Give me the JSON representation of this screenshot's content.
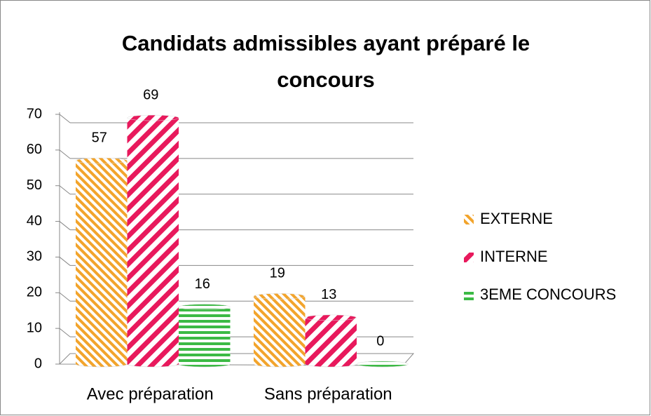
{
  "chart_data": {
    "type": "bar",
    "title": "Candidats admissibles ayant préparé le concours",
    "categories": [
      "Avec préparation",
      "Sans préparation"
    ],
    "series": [
      {
        "name": "EXTERNE",
        "color": "#f2a42c",
        "values": [
          57,
          19
        ]
      },
      {
        "name": "INTERNE",
        "color": "#e8195c",
        "values": [
          69,
          13
        ]
      },
      {
        "name": "3EME CONCOURS",
        "color": "#3cba45",
        "values": [
          16,
          0
        ]
      }
    ],
    "ylim": [
      0,
      70
    ],
    "yticks": [
      0,
      10,
      20,
      30,
      40,
      50,
      60,
      70
    ],
    "grid": true,
    "legend": "right"
  }
}
